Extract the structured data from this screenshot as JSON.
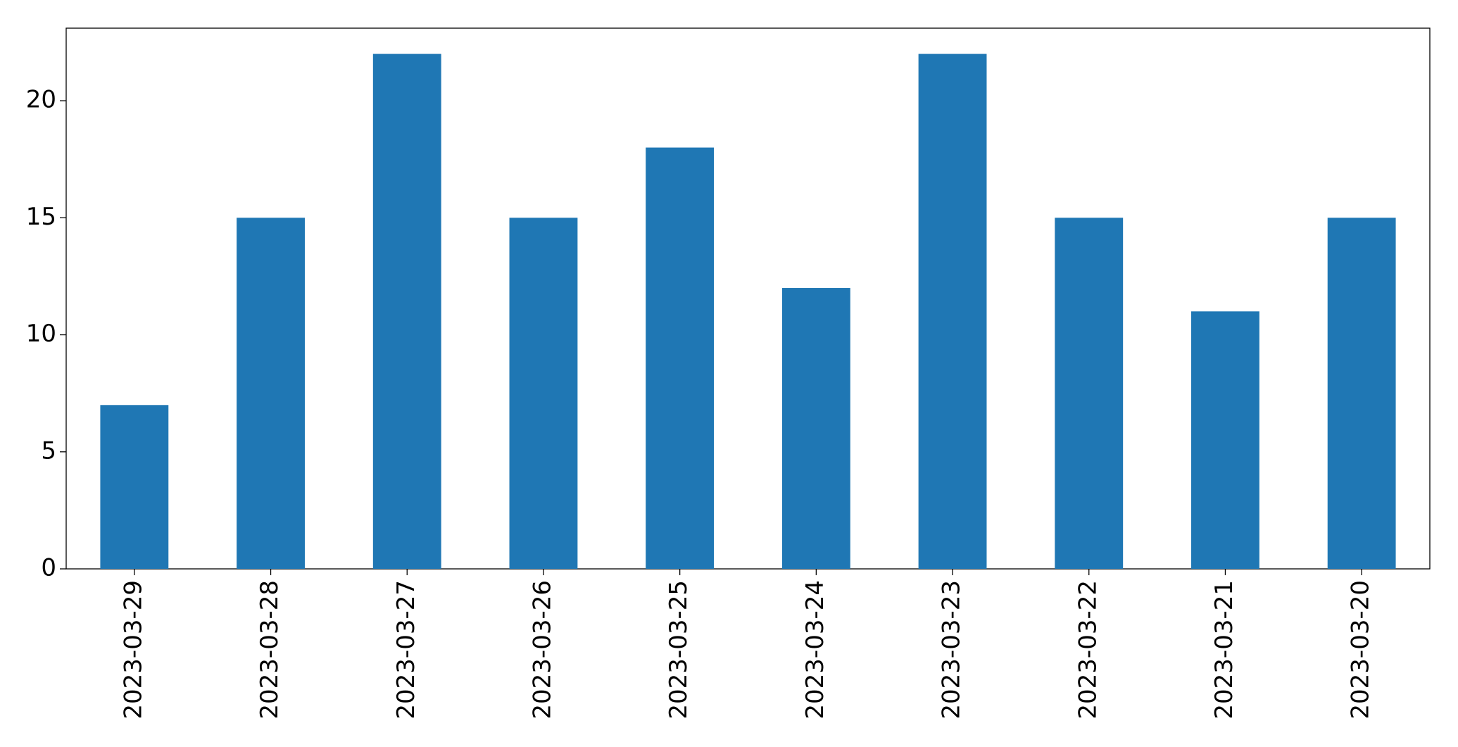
{
  "chart_data": {
    "type": "bar",
    "categories": [
      "2023-03-29",
      "2023-03-28",
      "2023-03-27",
      "2023-03-26",
      "2023-03-25",
      "2023-03-24",
      "2023-03-23",
      "2023-03-22",
      "2023-03-21",
      "2023-03-20"
    ],
    "values": [
      7,
      15,
      22,
      15,
      18,
      12,
      22,
      15,
      11,
      15
    ],
    "color": "#1f77b4",
    "ylim": [
      0,
      23.1
    ],
    "yticks": [
      0,
      5,
      10,
      15,
      20
    ],
    "grid": false
  }
}
